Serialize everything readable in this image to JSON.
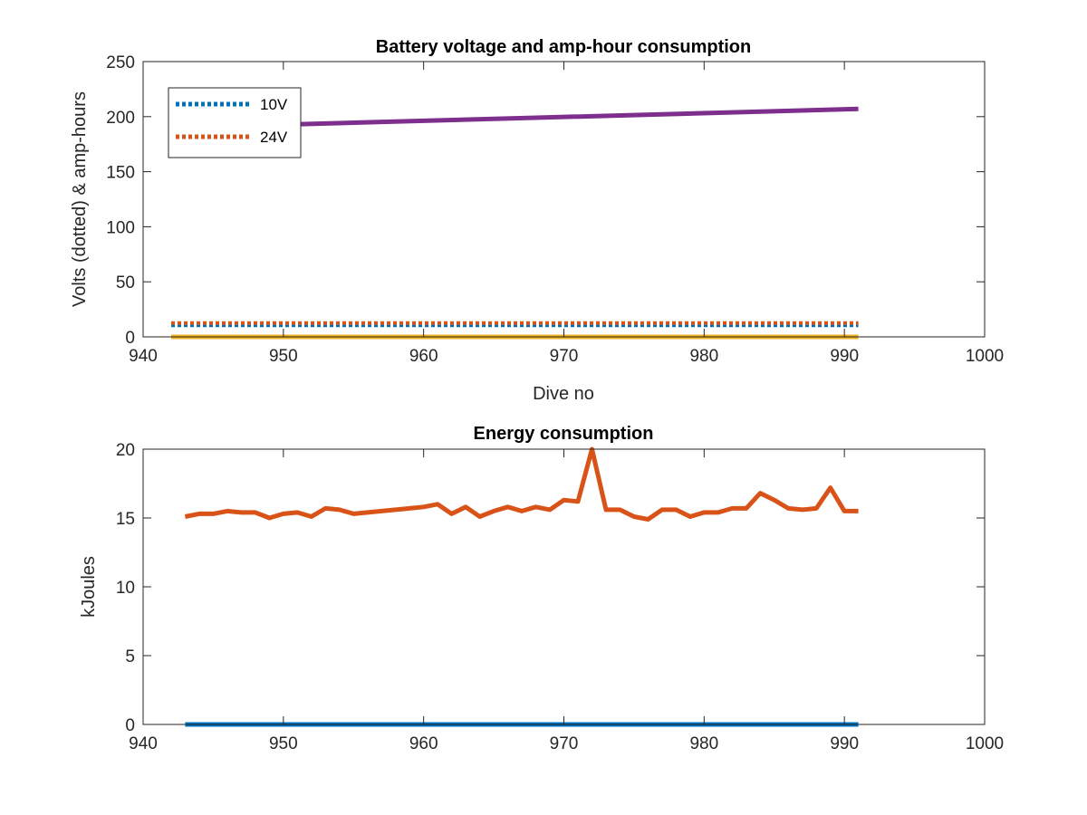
{
  "chart_data": [
    {
      "type": "line",
      "title": "Battery voltage and amp-hour consumption",
      "xlabel": "Dive no",
      "ylabel": "Volts (dotted) & amp-hours",
      "xlim": [
        940,
        1000
      ],
      "ylim": [
        0,
        250
      ],
      "xticks": [
        "940",
        "950",
        "960",
        "970",
        "980",
        "990",
        "1000"
      ],
      "yticks": [
        "0",
        "50",
        "100",
        "150",
        "200",
        "250"
      ],
      "legend_position": "top-left",
      "series": [
        {
          "name": "10V",
          "style": "dotted",
          "color": "#0072BD",
          "x": [
            942,
            991
          ],
          "y": [
            10.5,
            10.5
          ]
        },
        {
          "name": "24V",
          "style": "dotted",
          "color": "#D95319",
          "x": [
            942,
            991
          ],
          "y": [
            12.5,
            12.5
          ]
        },
        {
          "style": "solid",
          "color": "#7E2F8E",
          "x": [
            942,
            991
          ],
          "y": [
            190,
            207
          ]
        },
        {
          "style": "solid",
          "color": "#EDB120",
          "x": [
            942,
            991
          ],
          "y": [
            0,
            0
          ]
        }
      ]
    },
    {
      "type": "line",
      "title": "Energy consumption",
      "xlabel": "",
      "ylabel": "kJoules",
      "xlim": [
        940,
        1000
      ],
      "ylim": [
        0,
        20
      ],
      "xticks": [
        "940",
        "950",
        "960",
        "970",
        "980",
        "990",
        "1000"
      ],
      "yticks": [
        "0",
        "5",
        "10",
        "15",
        "20"
      ],
      "series": [
        {
          "style": "solid",
          "color": "#D95319",
          "x": [
            943,
            944,
            945,
            946,
            947,
            948,
            949,
            950,
            951,
            952,
            953,
            954,
            955,
            956,
            957,
            958,
            959,
            960,
            961,
            962,
            963,
            964,
            965,
            966,
            967,
            968,
            969,
            970,
            971,
            972,
            973,
            974,
            975,
            976,
            977,
            978,
            979,
            980,
            981,
            982,
            983,
            984,
            985,
            986,
            987,
            988,
            989,
            990,
            991
          ],
          "y": [
            15.1,
            15.3,
            15.3,
            15.5,
            15.4,
            15.4,
            15.0,
            15.3,
            15.4,
            15.1,
            15.7,
            15.6,
            15.3,
            15.4,
            15.5,
            15.6,
            15.7,
            15.8,
            16.0,
            15.3,
            15.8,
            15.1,
            15.5,
            15.8,
            15.5,
            15.8,
            15.6,
            16.3,
            16.2,
            20.0,
            15.6,
            15.6,
            15.1,
            14.9,
            15.6,
            15.6,
            15.1,
            15.4,
            15.4,
            15.7,
            15.7,
            16.8,
            16.3,
            15.7,
            15.6,
            15.7,
            17.2,
            15.5,
            15.5
          ]
        },
        {
          "style": "solid",
          "color": "#0072BD",
          "x": [
            943,
            991
          ],
          "y": [
            0,
            0
          ]
        }
      ]
    }
  ]
}
